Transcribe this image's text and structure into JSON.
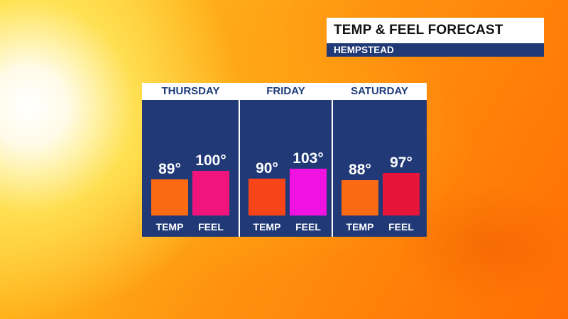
{
  "header": {
    "title": "TEMP & FEEL FORECAST",
    "location": "HEMPSTEAD"
  },
  "colors": {
    "panel": "#213a77",
    "header_text": "#1d3a7a"
  },
  "chart_data": {
    "type": "bar",
    "ylim": [
      0,
      120
    ],
    "days": [
      {
        "day": "THURSDAY",
        "bars": [
          {
            "category": "TEMP",
            "value": 89,
            "label": "89°",
            "color": "#f96a12"
          },
          {
            "category": "FEEL",
            "value": 100,
            "label": "100°",
            "color": "#f0147c"
          }
        ]
      },
      {
        "day": "FRIDAY",
        "bars": [
          {
            "category": "TEMP",
            "value": 90,
            "label": "90°",
            "color": "#f84518"
          },
          {
            "category": "FEEL",
            "value": 103,
            "label": "103°",
            "color": "#f012e0"
          }
        ]
      },
      {
        "day": "SATURDAY",
        "bars": [
          {
            "category": "TEMP",
            "value": 88,
            "label": "88°",
            "color": "#f96a12"
          },
          {
            "category": "FEEL",
            "value": 97,
            "label": "97°",
            "color": "#e8153a"
          }
        ]
      }
    ]
  }
}
